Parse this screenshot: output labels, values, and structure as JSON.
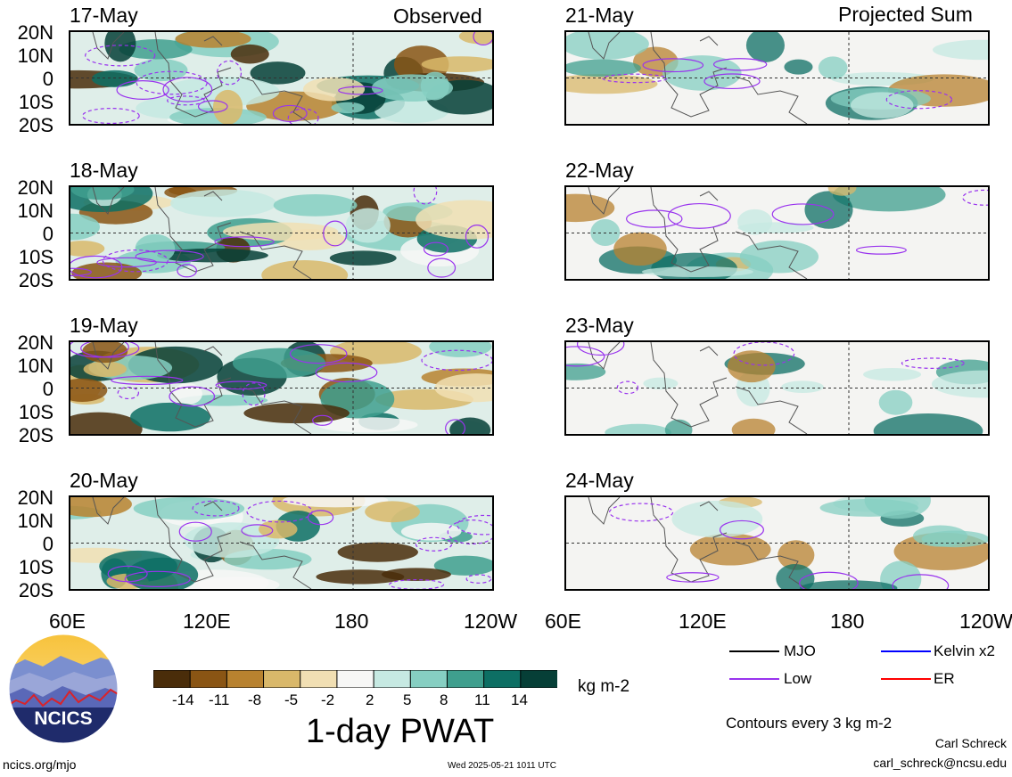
{
  "left_header": "Observed",
  "right_header": "Projected Sum",
  "left_dates": [
    "17-May",
    "18-May",
    "19-May",
    "20-May"
  ],
  "right_dates": [
    "21-May",
    "22-May",
    "23-May",
    "24-May"
  ],
  "lat_labels": [
    "20N",
    "10N",
    "0",
    "10S",
    "20S"
  ],
  "lon_labels": [
    "60E",
    "120E",
    "180",
    "120W"
  ],
  "colorbar": {
    "labels": [
      "-14",
      "-11",
      "-8",
      "-5",
      "-2",
      "2",
      "5",
      "8",
      "11",
      "14"
    ],
    "colors": [
      "#4a2d0a",
      "#8a5514",
      "#b8822f",
      "#d9b86a",
      "#f1dfb3",
      "#f7f7f6",
      "#c6e9e2",
      "#86cfc2",
      "#3f9f8e",
      "#0d6f64",
      "#063f37"
    ],
    "units": "kg m-2",
    "title": "1-day PWAT"
  },
  "legend": {
    "mjo": "MJO",
    "kelvin": "Kelvin x2",
    "low": "Low",
    "er": "ER",
    "contours": "Contours every 3 kg m-2",
    "colors": {
      "mjo": "#000000",
      "kelvin": "#0000ff",
      "low": "#9933ee",
      "er": "#ff0000"
    }
  },
  "logo": {
    "text": "NCICS"
  },
  "footer": {
    "url": "ncics.org/mjo",
    "timestamp": "Wed 2025-05-21 1011 UTC",
    "author": "Carl Schreck",
    "email": "carl_schreck@ncsu.edu"
  }
}
